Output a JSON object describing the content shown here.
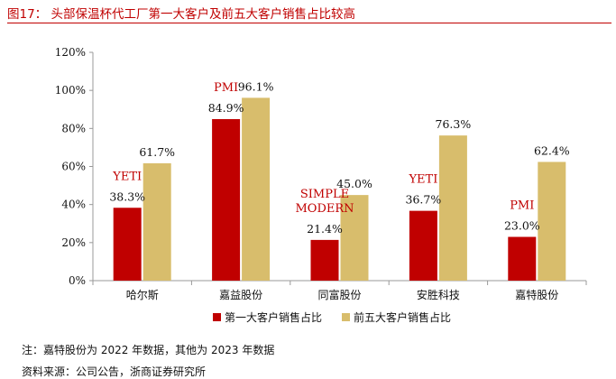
{
  "figure": {
    "title": "图17：  头部保温杯代工厂第一大客户及前五大客户销售占比较高",
    "note": "注：嘉特股份为 2022 年数据，其他为 2023 年数据",
    "source": "资料来源：公司公告，浙商证券研究所"
  },
  "colors": {
    "series1": "#c00000",
    "series2": "#d8bd6c",
    "accent": "#c00000",
    "axis": "#999999"
  },
  "chart_data": {
    "type": "bar",
    "categories": [
      "哈尔斯",
      "嘉益股份",
      "同富股份",
      "安胜科技",
      "嘉特股份"
    ],
    "series": [
      {
        "name": "第一大客户销售占比",
        "values": [
          38.3,
          84.9,
          21.4,
          36.7,
          23.0
        ]
      },
      {
        "name": "前五大客户销售占比",
        "values": [
          61.7,
          96.1,
          45.0,
          76.3,
          62.4
        ]
      }
    ],
    "value_labels": [
      [
        "38.3%",
        "84.9%",
        "21.4%",
        "36.7%",
        "23.0%"
      ],
      [
        "61.7%",
        "96.1%",
        "45.0%",
        "76.3%",
        "62.4%"
      ]
    ],
    "annotations": [
      {
        "category": "哈尔斯",
        "lines": [
          "YETI"
        ]
      },
      {
        "category": "嘉益股份",
        "lines": [
          "PMI"
        ]
      },
      {
        "category": "同富股份",
        "lines": [
          "SIMPLE",
          "MODERN"
        ]
      },
      {
        "category": "安胜科技",
        "lines": [
          "YETI"
        ]
      },
      {
        "category": "嘉特股份",
        "lines": [
          "PMI"
        ]
      }
    ],
    "yticks": [
      "0%",
      "20%",
      "40%",
      "60%",
      "80%",
      "100%",
      "120%"
    ],
    "ylim": [
      0,
      120
    ],
    "grid": false,
    "legend_position": "bottom"
  }
}
